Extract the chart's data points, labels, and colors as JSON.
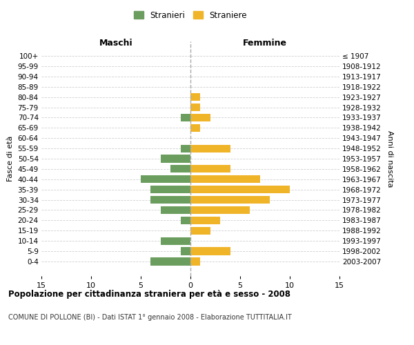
{
  "age_groups": [
    "100+",
    "95-99",
    "90-94",
    "85-89",
    "80-84",
    "75-79",
    "70-74",
    "65-69",
    "60-64",
    "55-59",
    "50-54",
    "45-49",
    "40-44",
    "35-39",
    "30-34",
    "25-29",
    "20-24",
    "15-19",
    "10-14",
    "5-9",
    "0-4"
  ],
  "birth_years": [
    "≤ 1907",
    "1908-1912",
    "1913-1917",
    "1918-1922",
    "1923-1927",
    "1928-1932",
    "1933-1937",
    "1938-1942",
    "1943-1947",
    "1948-1952",
    "1953-1957",
    "1958-1962",
    "1963-1967",
    "1968-1972",
    "1973-1977",
    "1978-1982",
    "1983-1987",
    "1988-1992",
    "1993-1997",
    "1998-2002",
    "2003-2007"
  ],
  "maschi": [
    0,
    0,
    0,
    0,
    0,
    0,
    1,
    0,
    0,
    1,
    3,
    2,
    5,
    4,
    4,
    3,
    1,
    0,
    3,
    1,
    4
  ],
  "femmine": [
    0,
    0,
    0,
    0,
    1,
    1,
    2,
    1,
    0,
    4,
    0,
    4,
    7,
    10,
    8,
    6,
    3,
    2,
    0,
    4,
    1
  ],
  "color_maschi": "#6b9e5e",
  "color_femmine": "#f0b429",
  "title": "Popolazione per cittadinanza straniera per età e sesso - 2008",
  "subtitle": "COMUNE DI POLLONE (BI) - Dati ISTAT 1° gennaio 2008 - Elaborazione TUTTITALIA.IT",
  "xlabel_left": "Maschi",
  "xlabel_right": "Femmine",
  "ylabel_left": "Fasce di età",
  "ylabel_right": "Anni di nascita",
  "legend_stranieri": "Stranieri",
  "legend_straniere": "Straniere",
  "xlim": 15,
  "bg_color": "#ffffff",
  "grid_color": "#d0d0d0",
  "bar_height": 0.75
}
